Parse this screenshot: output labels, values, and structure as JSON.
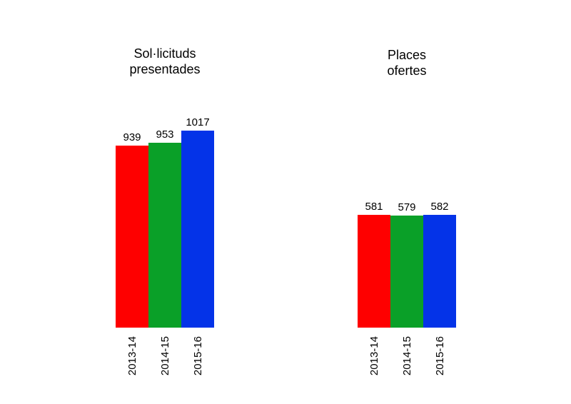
{
  "chart_data": [
    {
      "type": "bar",
      "title": "Sol·licituds presentades",
      "title_lines": [
        "Sol·licituds",
        "presentades"
      ],
      "categories": [
        "2013-14",
        "2014-15",
        "2015-16"
      ],
      "values": [
        939,
        953,
        1017
      ],
      "data_labels": [
        "939",
        "953",
        "1017"
      ],
      "bar_colors": [
        "#fe0000",
        "#0aa028",
        "#0433e8"
      ],
      "xlabel": "",
      "ylabel": "",
      "ylim": [
        0,
        1017
      ],
      "grid": false,
      "legend": "none"
    },
    {
      "type": "bar",
      "title": "Places ofertes",
      "title_lines": [
        "Places",
        "ofertes"
      ],
      "categories": [
        "2013-14",
        "2014-15",
        "2015-16"
      ],
      "values": [
        581,
        579,
        582
      ],
      "data_labels": [
        "581",
        "579",
        "582"
      ],
      "bar_colors": [
        "#fe0000",
        "#0aa028",
        "#0433e8"
      ],
      "xlabel": "",
      "ylabel": "",
      "ylim": [
        0,
        1017
      ],
      "grid": false,
      "legend": "none"
    }
  ],
  "layout": {
    "background": "#ffffff",
    "text_color": "#000000"
  }
}
